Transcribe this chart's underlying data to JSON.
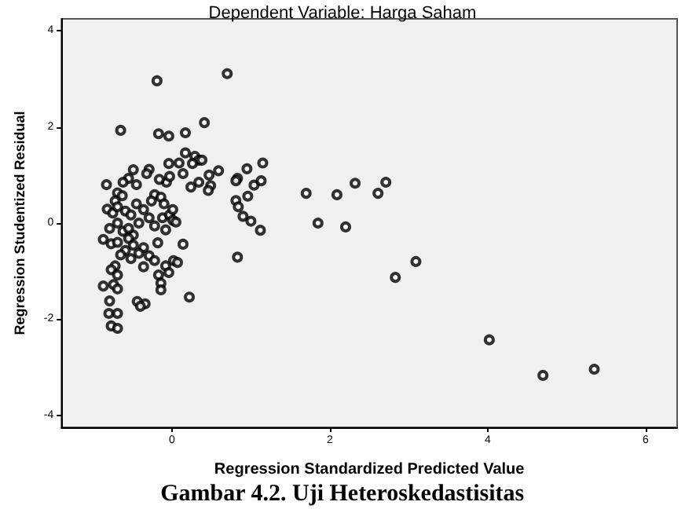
{
  "chart_data": {
    "type": "scatter",
    "title": "Dependent Variable: Harga Saham",
    "xlabel": "Regression Standardized Predicted Value",
    "ylabel": "Regression Studentized Residual",
    "annotations": [
      "Gambar 4.2. Uji Heteroskedastisitas"
    ],
    "xlim": [
      -1.4,
      6.4
    ],
    "ylim": [
      -4.25,
      4.25
    ],
    "xticks": [
      0,
      2,
      4,
      6
    ],
    "yticks": [
      -4,
      -2,
      0,
      2,
      4
    ],
    "grid": false,
    "marker": "circle",
    "series": [
      {
        "color": "#000000",
        "x": [
          4.02,
          4.7,
          5.35,
          3.09,
          2.83,
          1.7,
          2.09,
          2.32,
          2.61,
          2.71,
          1.85,
          2.2,
          -0.19,
          0.7,
          -0.65,
          -0.17,
          -0.04,
          0.17,
          0.41,
          0.09,
          0.17,
          0.29,
          0.34,
          0.38,
          0.26,
          -0.04,
          0.59,
          0.95,
          1.15,
          0.83,
          0.81,
          1.04,
          1.13,
          0.96,
          0.81,
          0.84,
          0.9,
          1.0,
          1.12,
          0.83,
          0.47,
          0.34,
          0.49,
          0.46,
          0.24,
          0.14,
          -0.07,
          -0.16,
          -0.03,
          -0.29,
          -0.32,
          -0.49,
          -0.55,
          -0.62,
          -0.83,
          -0.45,
          -0.69,
          -0.63,
          -0.22,
          -0.14,
          -0.26,
          -0.1,
          -0.45,
          -0.72,
          -0.82,
          -0.75,
          -0.59,
          -0.52,
          -0.36,
          -0.29,
          -0.12,
          -0.03,
          0.01,
          0.05,
          -0.08,
          -0.22,
          -0.42,
          -0.69,
          -0.79,
          -0.62,
          -0.49,
          -0.55,
          -0.87,
          -0.77,
          -0.69,
          -0.49,
          -0.36,
          -0.18,
          0.14,
          -0.59,
          -0.65,
          -0.42,
          -0.29,
          -0.22,
          -0.52,
          -0.72,
          -0.77,
          -0.69,
          -0.36,
          0.02,
          0.07,
          -0.08,
          -0.17,
          -0.04,
          -0.14,
          -0.14,
          -0.87,
          -0.74,
          -0.69,
          0.22,
          -0.44,
          -0.34,
          -0.4,
          -0.79,
          -0.8,
          -0.69,
          -0.77,
          -0.69,
          0.01,
          -0.55,
          -0.69
        ],
        "values": [
          -2.43,
          -3.17,
          -3.04,
          -0.8,
          -1.13,
          0.62,
          0.59,
          0.83,
          0.62,
          0.85,
          0.0,
          -0.08,
          2.96,
          3.11,
          1.93,
          1.86,
          1.81,
          1.88,
          2.09,
          1.25,
          1.46,
          1.39,
          1.31,
          1.31,
          1.24,
          1.24,
          1.09,
          1.13,
          1.25,
          0.93,
          0.88,
          0.79,
          0.88,
          0.56,
          0.47,
          0.34,
          0.14,
          0.04,
          -0.15,
          -0.71,
          1.0,
          0.85,
          0.78,
          0.68,
          0.75,
          1.03,
          0.85,
          0.91,
          0.97,
          1.12,
          1.03,
          1.11,
          0.93,
          0.85,
          0.8,
          0.8,
          0.63,
          0.57,
          0.59,
          0.54,
          0.46,
          0.4,
          0.4,
          0.46,
          0.29,
          0.21,
          0.25,
          0.17,
          0.28,
          0.11,
          0.11,
          0.17,
          0.06,
          0.02,
          -0.14,
          -0.06,
          0.0,
          0.0,
          -0.11,
          -0.17,
          -0.25,
          -0.32,
          -0.34,
          -0.43,
          -0.4,
          -0.46,
          -0.51,
          -0.41,
          -0.44,
          -0.57,
          -0.66,
          -0.63,
          -0.68,
          -0.78,
          -0.74,
          -0.89,
          -0.97,
          -1.08,
          -0.91,
          -0.78,
          -0.82,
          -0.89,
          -1.08,
          -1.03,
          -1.25,
          -1.39,
          -1.31,
          -1.28,
          -1.37,
          -1.54,
          -1.63,
          -1.68,
          -1.73,
          -1.62,
          -1.88,
          -1.88,
          -2.14,
          -2.19,
          0.28,
          -0.11,
          0.34
        ]
      }
    ]
  }
}
